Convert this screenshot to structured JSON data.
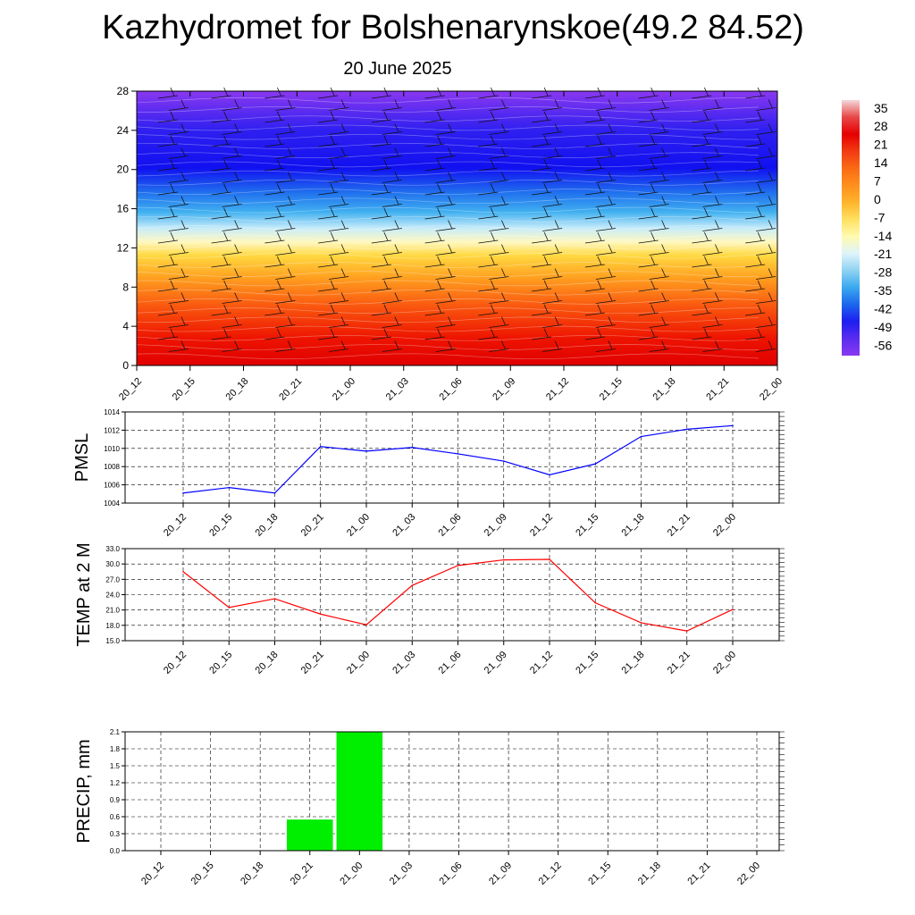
{
  "title": "Kazhydromet for Bolshenarynskoe(49.2 84.52)",
  "subtitle": "20 June 2025",
  "chart_data": [
    {
      "type": "heatmap",
      "title": "Kazhydromet for Bolshenarynskoe(49.2 84.52)",
      "subtitle": "20 June 2025",
      "x_ticks": [
        "20_12",
        "20_15",
        "20_18",
        "20_21",
        "21_00",
        "21_03",
        "21_06",
        "21_09",
        "21_12",
        "21_15",
        "21_18",
        "21_21",
        "22_00"
      ],
      "y_ticks": [
        0,
        4,
        8,
        12,
        16,
        20,
        24,
        28
      ],
      "ylim": [
        0,
        28
      ],
      "colorbar_labels": [
        "35",
        "28",
        "21",
        "14",
        "7",
        "0",
        "-7",
        "-14",
        "-21",
        "-28",
        "-35",
        "-42",
        "-49",
        "-56"
      ],
      "colorbar_range": [
        -60,
        38
      ],
      "colorbar_colors": [
        "#f2d7d9",
        "#e84848",
        "#e50000",
        "#f23a12",
        "#fa6a14",
        "#ff8f1e",
        "#ffb42c",
        "#ffe060",
        "#fffab0",
        "#dff4fb",
        "#8fd2f2",
        "#3aa8ef",
        "#1c66ec",
        "#1e1ef0",
        "#5a2cf0",
        "#8a38f0"
      ],
      "wind_barbs": "shown"
    },
    {
      "type": "line",
      "ylabel": "PMSL",
      "x": [
        "20_12",
        "20_15",
        "20_18",
        "20_21",
        "21_00",
        "21_03",
        "21_06",
        "21_09",
        "21_12",
        "21_15",
        "21_18",
        "21_21",
        "22_00"
      ],
      "values": [
        1005.1,
        1005.7,
        1005.1,
        1010.2,
        1009.7,
        1010.1,
        1009.4,
        1008.6,
        1007.1,
        1008.3,
        1011.3,
        1012.1,
        1012.5
      ],
      "ylim": [
        1004,
        1014
      ],
      "y_ticks": [
        "1004",
        "1006",
        "1008",
        "1010",
        "1012",
        "1014"
      ],
      "color": "#0000ff",
      "grid": true
    },
    {
      "type": "line",
      "ylabel": "TEMP at 2 M",
      "x": [
        "20_12",
        "20_15",
        "20_18",
        "20_21",
        "21_00",
        "21_03",
        "21_06",
        "21_09",
        "21_12",
        "21_15",
        "21_18",
        "21_21",
        "22_00"
      ],
      "values": [
        28.5,
        21.5,
        23.2,
        20.2,
        18.1,
        25.8,
        29.7,
        30.8,
        30.9,
        22.4,
        18.5,
        16.9,
        21.1
      ],
      "ylim": [
        15,
        33
      ],
      "y_ticks": [
        "15.0",
        "18.0",
        "21.0",
        "24.0",
        "27.0",
        "30.0",
        "33.0"
      ],
      "color": "#ff0000",
      "grid": true
    },
    {
      "type": "bar",
      "ylabel": "PRECIP, mm",
      "categories": [
        "20_12",
        "20_15",
        "20_18",
        "20_21",
        "21_00",
        "21_03",
        "21_06",
        "21_09",
        "21_12",
        "21_15",
        "21_18",
        "21_21",
        "22_00"
      ],
      "values": [
        0,
        0,
        0,
        0.55,
        2.1,
        0,
        0,
        0,
        0,
        0,
        0,
        0,
        0
      ],
      "ylim": [
        0,
        2.1
      ],
      "y_ticks": [
        "0.0",
        "0.3",
        "0.6",
        "0.9",
        "1.2",
        "1.5",
        "1.8",
        "2.1"
      ],
      "color": "#00ee00",
      "grid": true
    }
  ]
}
